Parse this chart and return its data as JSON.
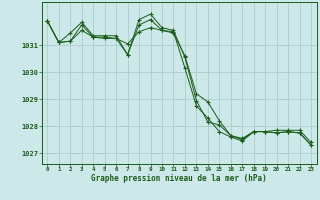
{
  "xlabel": "Graphe pression niveau de la mer (hPa)",
  "background_color": "#cce8e8",
  "grid_color": "#aacccc",
  "line_color": "#1a5c1a",
  "xlim": [
    -0.5,
    23.5
  ],
  "ylim": [
    1026.6,
    1032.6
  ],
  "yticks": [
    1027,
    1028,
    1029,
    1030,
    1031
  ],
  "xticks": [
    0,
    1,
    2,
    3,
    4,
    5,
    6,
    7,
    8,
    9,
    10,
    11,
    12,
    13,
    14,
    15,
    16,
    17,
    18,
    19,
    20,
    21,
    22,
    23
  ],
  "series1": [
    1031.9,
    1031.1,
    1031.15,
    1031.55,
    1031.3,
    1031.25,
    1031.25,
    1031.05,
    1031.5,
    1031.65,
    1031.55,
    1031.45,
    1030.6,
    1029.2,
    1028.9,
    1028.2,
    1027.65,
    1027.55,
    1027.8,
    1027.8,
    1027.75,
    1027.8,
    1027.75,
    1027.3
  ],
  "series2": [
    1031.9,
    1031.1,
    1031.15,
    1031.75,
    1031.3,
    1031.3,
    1031.25,
    1030.65,
    1031.75,
    1031.95,
    1031.55,
    1031.5,
    1030.15,
    1028.75,
    1028.3,
    1027.8,
    1027.6,
    1027.45,
    1027.8,
    1027.8,
    1027.75,
    1027.8,
    1027.75,
    1027.3
  ],
  "series3": [
    1031.9,
    1031.1,
    1031.45,
    1031.85,
    1031.35,
    1031.35,
    1031.35,
    1030.65,
    1031.95,
    1032.15,
    1031.65,
    1031.55,
    1030.55,
    1028.95,
    1028.15,
    1028.05,
    1027.65,
    1027.5,
    1027.8,
    1027.8,
    1027.85,
    1027.85,
    1027.85,
    1027.4
  ]
}
